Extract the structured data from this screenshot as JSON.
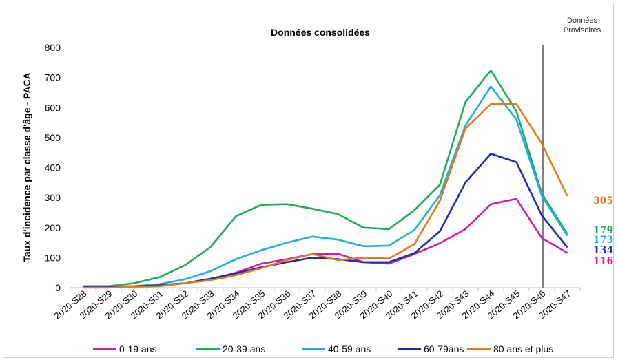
{
  "chart_data": {
    "type": "line",
    "title": "Données consolidées",
    "ylabel": "Taux d'incidence par classe d'âge - PACA",
    "xlabel": "",
    "ylim": [
      0,
      800
    ],
    "yticks": [
      0,
      100,
      200,
      300,
      400,
      500,
      600,
      700,
      800
    ],
    "categories": [
      "2020-S28",
      "2020-S29",
      "2020-S30",
      "2020-S31",
      "2020-S32",
      "2020-S33",
      "2020-S34",
      "2020-S35",
      "2020-S36",
      "2020-S37",
      "2020-S38",
      "2020-S39",
      "2020-S40",
      "2020-S41",
      "2020-S42",
      "2020-S43",
      "2020-S44",
      "2020-S45",
      "2020-S46",
      "2020-S47"
    ],
    "provisional_label": [
      "Données",
      "Provisoires"
    ],
    "provisional_from": "2020-S46",
    "legend_position": "bottom",
    "grid": false,
    "series": [
      {
        "name": "0-19 ans",
        "color": "#cc1fa0",
        "end_label": "116",
        "values": [
          3,
          3,
          5,
          8,
          15,
          28,
          50,
          80,
          95,
          112,
          113,
          85,
          80,
          112,
          148,
          195,
          278,
          296,
          165,
          116
        ]
      },
      {
        "name": "20-39 ans",
        "color": "#1faa5a",
        "end_label": "179",
        "values": [
          5,
          5,
          15,
          35,
          75,
          135,
          238,
          276,
          278,
          263,
          245,
          200,
          195,
          258,
          343,
          618,
          724,
          588,
          313,
          179
        ]
      },
      {
        "name": "40-59 ans",
        "color": "#21ade0",
        "end_label": "173",
        "values": [
          3,
          3,
          5,
          12,
          28,
          55,
          95,
          125,
          150,
          170,
          160,
          138,
          140,
          192,
          308,
          540,
          670,
          560,
          305,
          173
        ]
      },
      {
        "name": "60-79ans",
        "color": "#1c2bb5",
        "end_label": "134",
        "values": [
          2,
          2,
          4,
          8,
          15,
          30,
          48,
          68,
          85,
          100,
          95,
          85,
          85,
          115,
          188,
          350,
          446,
          418,
          240,
          134
        ]
      },
      {
        "name": "80 ans et plus",
        "color": "#e07a1c",
        "end_label": "305",
        "values": [
          0,
          0,
          3,
          5,
          15,
          25,
          42,
          65,
          92,
          112,
          92,
          100,
          97,
          145,
          290,
          530,
          612,
          612,
          480,
          305
        ]
      }
    ]
  }
}
